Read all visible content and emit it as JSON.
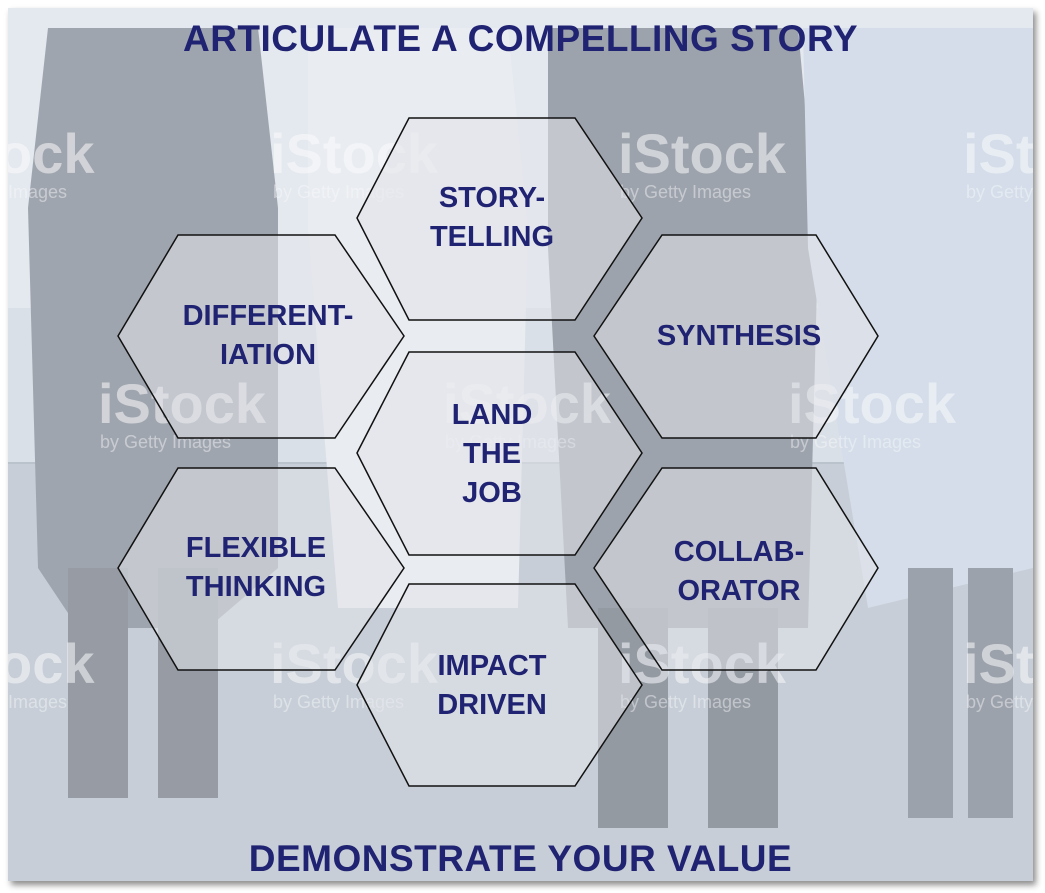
{
  "header": {
    "title": "ARTICULATE A COMPELLING STORY"
  },
  "footer": {
    "title": "DEMONSTRATE YOUR VALUE"
  },
  "watermark": {
    "brand": "iStock",
    "sub": "by Getty Images"
  },
  "hexagons": [
    {
      "id": "storytelling",
      "label": "STORY-\nTELLING"
    },
    {
      "id": "differentiation",
      "label": "DIFFERENT-\nIATION"
    },
    {
      "id": "synthesis",
      "label": "SYNTHESIS"
    },
    {
      "id": "land-the-job",
      "label": "LAND\nTHE\nJOB"
    },
    {
      "id": "flexible-thinking",
      "label": "FLEXIBLE\nTHINKING"
    },
    {
      "id": "collaborator",
      "label": "COLLAB-\nORATOR"
    },
    {
      "id": "impact-driven",
      "label": "IMPACT\nDRIVEN"
    }
  ],
  "colors": {
    "title": "#1f2372",
    "hex_fill": "#d9dde3",
    "hex_stroke": "#111111"
  }
}
